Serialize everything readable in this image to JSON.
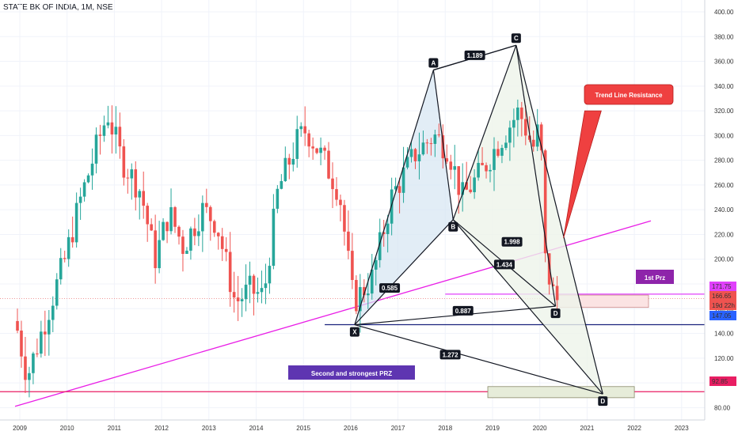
{
  "header": {
    "symbol_title": "STATE BK OF INDIA, 1M, NSE"
  },
  "chart_data": {
    "type": "candlestick",
    "title": "STATE BK OF INDIA, 1M, NSE",
    "x_ticks": [
      "2009",
      "2010",
      "2011",
      "2012",
      "2013",
      "2014",
      "2015",
      "2016",
      "2017",
      "2018",
      "2019",
      "2020",
      "2021",
      "2022",
      "2023"
    ],
    "y_ticks": [
      "80.00",
      "100.00",
      "120.00",
      "140.00",
      "160.00",
      "180.00",
      "200.00",
      "220.00",
      "240.00",
      "260.00",
      "280.00",
      "300.00",
      "320.00",
      "340.00",
      "360.00",
      "380.00",
      "400.00"
    ],
    "ylim": [
      70,
      405
    ],
    "colors": {
      "up": "#26a69a",
      "down": "#ef5350",
      "harmonic": "#131722",
      "fill": "#d6e6f2"
    },
    "price_tags": [
      {
        "text": "171.75",
        "value": 171.75,
        "bg": "#e040fb"
      },
      {
        "text": "166.65",
        "value": 166.65,
        "bg": "#ef5350"
      },
      {
        "text": "19d 22h",
        "value": 158.5,
        "bg": "#ef5350"
      },
      {
        "text": "147.05",
        "value": 147.05,
        "bg": "#2962ff"
      },
      {
        "text": "92.85",
        "value": 92.85,
        "bg": "#e91e63"
      }
    ],
    "horizontal_lines": [
      {
        "name": "x-level",
        "value": 147.05,
        "color": "#1a237e"
      },
      {
        "name": "lower-prz-line",
        "value": 92.85,
        "color": "#e91e63"
      },
      {
        "name": "first-prz-line",
        "value": 171.75,
        "color": "#e040fb"
      }
    ],
    "pattern_points": [
      {
        "label": "X",
        "date": "2016-02",
        "value": 147
      },
      {
        "label": "A",
        "date": "2017-10",
        "value": 353
      },
      {
        "label": "B",
        "date": "2018-03",
        "value": 232
      },
      {
        "label": "C",
        "date": "2019-07",
        "value": 373
      },
      {
        "label": "D",
        "date": "2020-05",
        "value": 162
      },
      {
        "label": "D",
        "date": "2021-05",
        "value": 91
      }
    ],
    "ratios": [
      {
        "text": "0.585"
      },
      {
        "text": "1.189"
      },
      {
        "text": "1.434"
      },
      {
        "text": "0.887"
      },
      {
        "text": "1.998"
      },
      {
        "text": "1.272"
      }
    ],
    "annotations": {
      "trend_line_resistance": "Trend Line Resistance",
      "first_prz": "1st Prz",
      "second_prz": "Second and strongest PRZ"
    }
  }
}
